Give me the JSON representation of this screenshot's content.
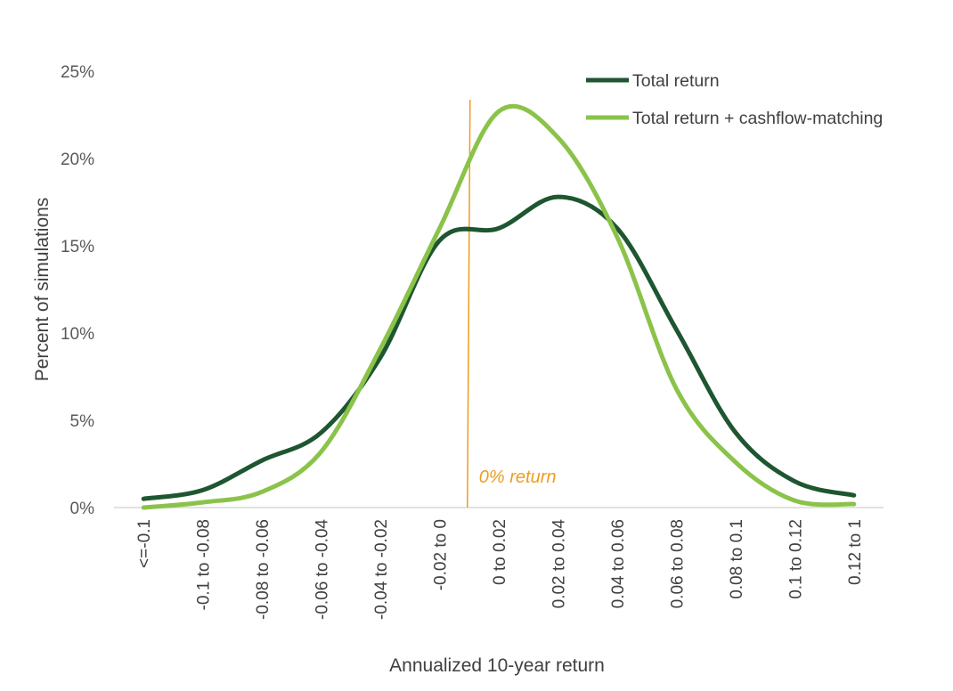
{
  "chart_data": {
    "type": "line",
    "categories": [
      "<=-0.1",
      "-0.1 to -0.08",
      "-0.08 to -0.06",
      "-0.06 to -0.04",
      "-0.04 to -0.02",
      "-0.02 to 0",
      "0 to 0.02",
      "0.02 to 0.04",
      "0.04 to 0.06",
      "0.06 to 0.08",
      "0.08 to 0.1",
      "0.1 to 0.12",
      "0.12 to 1"
    ],
    "series": [
      {
        "name": "Total return",
        "color": "#1E5631",
        "values": [
          0.5,
          1.0,
          2.7,
          4.3,
          8.6,
          15.3,
          16.0,
          17.8,
          16.0,
          10.2,
          4.3,
          1.5,
          0.7
        ]
      },
      {
        "name": "Total return + cashflow-matching",
        "color": "#8BC34A",
        "values": [
          0.0,
          0.3,
          0.9,
          3.2,
          9.1,
          16.0,
          22.7,
          21.2,
          15.5,
          6.8,
          2.6,
          0.4,
          0.2
        ]
      }
    ],
    "ylabel": "Percent of simulations",
    "xlabel": "Annualized 10-year return",
    "ylim": [
      0,
      25
    ],
    "yticks": [
      "0%",
      "5%",
      "10%",
      "15%",
      "20%",
      "25%"
    ],
    "grid": false,
    "legend_position": "top-right",
    "annotation": {
      "text": "0% return",
      "color": "#ED9D22"
    }
  }
}
